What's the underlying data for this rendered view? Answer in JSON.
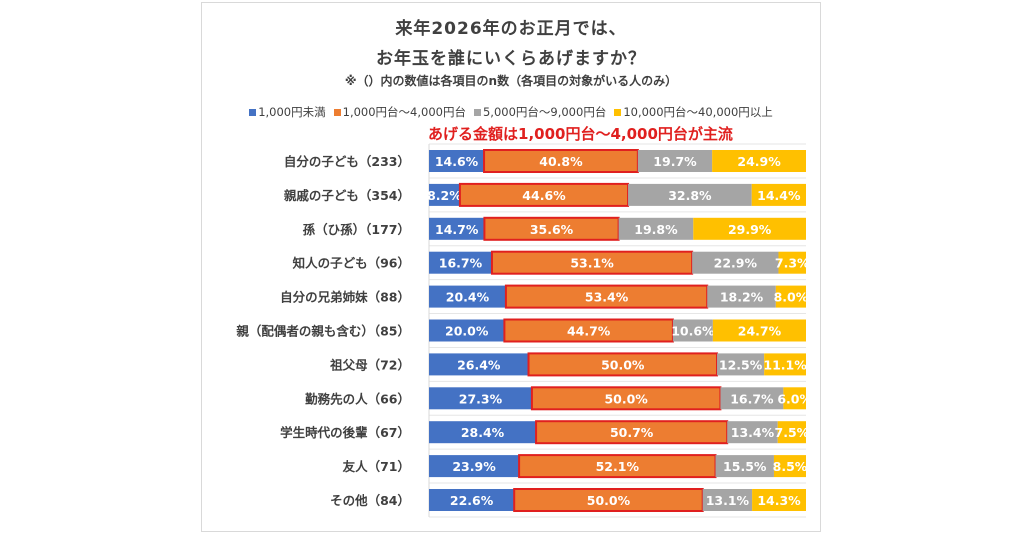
{
  "chart_data": {
    "type": "bar",
    "orientation": "horizontal",
    "stacked": true,
    "title": "来年2026年のお正月では、",
    "title_line2": "お年玉を誰にいくらあげますか？",
    "subtitle": "※（）内の数値は各項目のn数（各項目の対象がいる人のみ）",
    "annotation": "あげる金額は1,000円台～4,000円台が主流",
    "legend_position": "top",
    "xlim": [
      0,
      100
    ],
    "categories": [
      "自分の子ども（233）",
      "親戚の子ども（354）",
      "孫（ひ孫）（177）",
      "知人の子ども（96）",
      "自分の兄弟姉妹（88）",
      "親（配偶者の親も含む）（85）",
      "祖父母（72）",
      "勤務先の人（66）",
      "学生時代の後輩（67）",
      "友人（71）",
      "その他（84）"
    ],
    "series": [
      {
        "name": "1,000円未満",
        "color": "#4472c4",
        "values": [
          14.6,
          8.2,
          14.7,
          16.7,
          20.4,
          20.0,
          26.4,
          27.3,
          28.4,
          23.9,
          22.6
        ]
      },
      {
        "name": "1,000円台～4,000円台",
        "color": "#ed7d31",
        "highlight": "#e0201f",
        "values": [
          40.8,
          44.6,
          35.6,
          53.1,
          53.4,
          44.7,
          50.0,
          50.0,
          50.7,
          52.1,
          50.0
        ]
      },
      {
        "name": "5,000円台～9,000円台",
        "color": "#a5a5a5",
        "values": [
          19.7,
          32.8,
          19.8,
          22.9,
          18.2,
          10.6,
          12.5,
          16.7,
          13.4,
          15.5,
          13.1
        ]
      },
      {
        "name": "10,000円台～40,000円以上",
        "color": "#ffc000",
        "values": [
          24.9,
          14.4,
          29.9,
          7.3,
          8.0,
          24.7,
          11.1,
          6.0,
          7.5,
          8.5,
          14.3
        ]
      }
    ]
  }
}
